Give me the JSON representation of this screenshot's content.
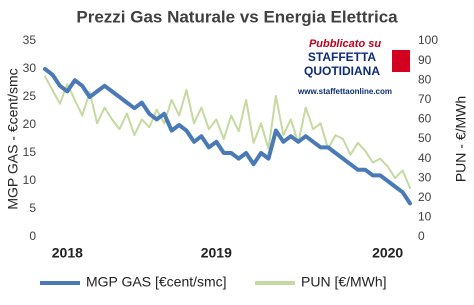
{
  "chart_data": {
    "type": "line",
    "title": "Prezzi Gas Naturale vs Energia Elettrica",
    "y_label": "MGP GAS - €cent/smc",
    "y2_label": "PUN - €/MWh",
    "annotations": [
      "Pubblicato su",
      "STAFFETTA",
      "QUOTIDIANA",
      "www.staffettaonline.com"
    ],
    "categories": [
      null,
      null,
      null,
      "2018",
      null,
      null,
      null,
      null,
      null,
      null,
      null,
      null,
      null,
      null,
      null,
      null,
      null,
      null,
      null,
      null,
      null,
      null,
      null,
      "2019",
      null,
      null,
      null,
      null,
      null,
      null,
      null,
      null,
      null,
      null,
      null,
      null,
      null,
      null,
      null,
      null,
      null,
      null,
      null,
      null,
      null,
      null,
      "2020",
      null,
      null,
      null
    ],
    "series": [
      {
        "name": "MGP GAS [€cent/smc]",
        "color": "#4a7ab5",
        "values": [
          30,
          29,
          27,
          26,
          28,
          27,
          25,
          26,
          27,
          26,
          25,
          24,
          23,
          24,
          22,
          21,
          22,
          19,
          20,
          19,
          17,
          18,
          16,
          17,
          15,
          15,
          14,
          15,
          13,
          15,
          14,
          19,
          17,
          18,
          17,
          18,
          17,
          16,
          16,
          15,
          14,
          13,
          12,
          12,
          11,
          11,
          10,
          9,
          8,
          6
        ]
      },
      {
        "name": "PUN [€/MWh]",
        "color": "#c5d9a0",
        "axis": "y2",
        "values": [
          82,
          75,
          68,
          78,
          70,
          62,
          74,
          58,
          66,
          60,
          55,
          63,
          52,
          60,
          56,
          65,
          58,
          70,
          62,
          75,
          58,
          66,
          55,
          60,
          50,
          62,
          54,
          70,
          48,
          58,
          45,
          72,
          52,
          60,
          48,
          66,
          55,
          58,
          45,
          52,
          50,
          42,
          48,
          44,
          38,
          40,
          36,
          30,
          34,
          25
        ]
      }
    ],
    "ylim": [
      0,
      35
    ],
    "yticks": [
      0,
      5,
      10,
      15,
      20,
      25,
      30,
      35
    ],
    "y2lim": [
      0,
      100
    ],
    "y2ticks": [
      0,
      10,
      20,
      30,
      40,
      50,
      60,
      70,
      80,
      90,
      100
    ],
    "grid": false
  }
}
